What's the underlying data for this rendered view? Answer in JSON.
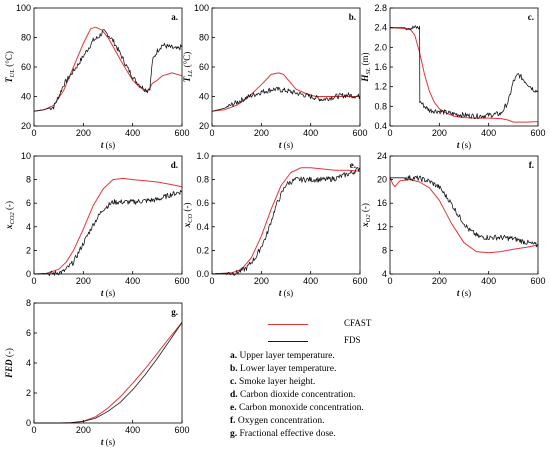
{
  "colors": {
    "cfast": "#e8323c",
    "fds": "#1a1a1a",
    "axis": "#000000"
  },
  "legend": {
    "cfast": "CFAST",
    "fds": "FDS"
  },
  "notes": [
    {
      "key": "a.",
      "text": "Upper layer temperature."
    },
    {
      "key": "b.",
      "text": "Lower layer temperature."
    },
    {
      "key": "c.",
      "text": "Smoke layer height."
    },
    {
      "key": "d.",
      "text": "Carbon dioxide concentration."
    },
    {
      "key": "e.",
      "text": "Carbon monoxide concentration."
    },
    {
      "key": "f.",
      "text": "Oxygen concentration."
    },
    {
      "key": "g.",
      "text": "Fractional effective dose."
    }
  ],
  "chart_data": [
    {
      "type": "line",
      "panel": "a.",
      "xlabel": "t (s)",
      "ylabel": "T_UL (°C)",
      "xlim": [
        0,
        600
      ],
      "ylim": [
        20,
        100
      ],
      "xticks": [
        0,
        200,
        400,
        600
      ],
      "yticks": [
        20,
        40,
        60,
        80,
        100
      ],
      "series": [
        {
          "name": "CFAST",
          "x": [
            0,
            40,
            80,
            120,
            160,
            200,
            230,
            250,
            275,
            300,
            330,
            360,
            400,
            430,
            460,
            470,
            480,
            500,
            520,
            560,
            600
          ],
          "y": [
            30,
            31,
            34,
            44,
            60,
            76,
            86,
            87,
            85,
            80,
            71,
            62,
            51,
            46,
            44,
            46,
            49,
            51,
            54,
            56,
            54
          ]
        },
        {
          "name": "FDS",
          "x": [
            0,
            40,
            80,
            100,
            120,
            150,
            180,
            210,
            240,
            260,
            280,
            300,
            320,
            350,
            380,
            410,
            440,
            460,
            470,
            475,
            480,
            500,
            520,
            540,
            560,
            580,
            600
          ],
          "y": [
            30,
            31,
            33,
            40,
            48,
            55,
            62,
            70,
            78,
            80,
            84,
            82,
            78,
            69,
            59,
            51,
            46,
            44,
            46,
            55,
            64,
            71,
            75,
            74,
            73,
            72,
            74
          ],
          "noisy": true
        }
      ]
    },
    {
      "type": "line",
      "panel": "b.",
      "xlabel": "t (s)",
      "ylabel": "T_LL (°C)",
      "xlim": [
        0,
        600
      ],
      "ylim": [
        20,
        100
      ],
      "xticks": [
        0,
        200,
        400,
        600
      ],
      "yticks": [
        20,
        40,
        60,
        80,
        100
      ],
      "series": [
        {
          "name": "CFAST",
          "x": [
            0,
            50,
            100,
            150,
            200,
            240,
            270,
            290,
            310,
            340,
            380,
            420,
            460,
            500,
            550,
            600
          ],
          "y": [
            30,
            31,
            34,
            40,
            48,
            55,
            56,
            55,
            51,
            45,
            42,
            40,
            40,
            40,
            40,
            40
          ]
        },
        {
          "name": "FDS",
          "x": [
            0,
            50,
            100,
            150,
            200,
            250,
            300,
            350,
            400,
            450,
            500,
            550,
            600
          ],
          "y": [
            30,
            32,
            36,
            40,
            43,
            45,
            44,
            42,
            40,
            38,
            40,
            41,
            40
          ],
          "noisy": true
        }
      ]
    },
    {
      "type": "line",
      "panel": "c.",
      "xlabel": "t (s)",
      "ylabel": "H_SL (m)",
      "xlim": [
        0,
        600
      ],
      "ylim": [
        0.4,
        2.8
      ],
      "xticks": [
        0,
        200,
        400,
        600
      ],
      "yticks": [
        0.4,
        0.8,
        1.2,
        1.6,
        2.0,
        2.4,
        2.8
      ],
      "series": [
        {
          "name": "CFAST",
          "x": [
            0,
            80,
            100,
            120,
            140,
            160,
            180,
            200,
            230,
            260,
            300,
            350,
            400,
            450,
            480,
            500,
            550,
            600
          ],
          "y": [
            2.4,
            2.38,
            2.25,
            1.9,
            1.45,
            1.1,
            0.88,
            0.75,
            0.66,
            0.6,
            0.57,
            0.56,
            0.56,
            0.55,
            0.52,
            0.48,
            0.48,
            0.49
          ]
        },
        {
          "name": "FDS",
          "x": [
            0,
            120,
            121,
            140,
            160,
            200,
            250,
            300,
            350,
            400,
            450,
            480,
            500,
            520,
            540,
            560,
            580,
            600
          ],
          "y": [
            2.4,
            2.4,
            0.9,
            0.8,
            0.72,
            0.7,
            0.65,
            0.62,
            0.6,
            0.62,
            0.65,
            0.9,
            1.3,
            1.45,
            1.35,
            1.25,
            1.15,
            1.1
          ],
          "noisy": true
        }
      ]
    },
    {
      "type": "line",
      "panel": "d.",
      "xlabel": "t (s)",
      "ylabel": "x_CO2 (-)",
      "xlim": [
        0,
        600
      ],
      "ylim": [
        0,
        10
      ],
      "xticks": [
        0,
        200,
        400,
        600
      ],
      "yticks": [
        0,
        2,
        4,
        6,
        8,
        10
      ],
      "series": [
        {
          "name": "CFAST",
          "x": [
            0,
            50,
            100,
            130,
            160,
            200,
            240,
            280,
            320,
            360,
            400,
            450,
            500,
            550,
            600
          ],
          "y": [
            0,
            0.05,
            0.4,
            1.0,
            2.0,
            3.8,
            5.8,
            7.2,
            8.0,
            8.1,
            8.0,
            7.9,
            7.8,
            7.6,
            7.4
          ]
        },
        {
          "name": "FDS",
          "x": [
            0,
            80,
            120,
            160,
            200,
            240,
            280,
            320,
            360,
            400,
            450,
            500,
            550,
            600
          ],
          "y": [
            0,
            0.05,
            0.2,
            1.0,
            2.6,
            4.2,
            5.5,
            6.1,
            6.1,
            6.1,
            6.2,
            6.3,
            6.7,
            7.0
          ],
          "noisy": true
        }
      ]
    },
    {
      "type": "line",
      "panel": "e.",
      "xlabel": "t (s)",
      "ylabel": "x_CO (-)",
      "xlim": [
        0,
        600
      ],
      "ylim": [
        0,
        1
      ],
      "xticks": [
        0,
        200,
        400,
        600
      ],
      "yticks": [
        0,
        0.2,
        0.4,
        0.6,
        0.8,
        1.0
      ],
      "series": [
        {
          "name": "CFAST",
          "x": [
            0,
            80,
            120,
            160,
            200,
            240,
            280,
            320,
            360,
            400,
            450,
            500,
            550,
            600
          ],
          "y": [
            0,
            0.01,
            0.04,
            0.14,
            0.32,
            0.55,
            0.75,
            0.86,
            0.9,
            0.9,
            0.89,
            0.88,
            0.88,
            0.87
          ]
        },
        {
          "name": "FDS",
          "x": [
            0,
            100,
            140,
            180,
            220,
            260,
            300,
            340,
            380,
            420,
            460,
            500,
            540,
            570,
            600
          ],
          "y": [
            0,
            0.01,
            0.05,
            0.15,
            0.32,
            0.58,
            0.76,
            0.8,
            0.8,
            0.8,
            0.8,
            0.81,
            0.84,
            0.86,
            0.9
          ],
          "noisy": true
        }
      ]
    },
    {
      "type": "line",
      "panel": "f.",
      "xlabel": "t (s)",
      "ylabel": "x_O2 (-)",
      "xlim": [
        0,
        600
      ],
      "ylim": [
        4,
        24
      ],
      "xticks": [
        0,
        200,
        400,
        600
      ],
      "yticks": [
        4,
        8,
        12,
        16,
        20,
        24
      ],
      "series": [
        {
          "name": "CFAST",
          "x": [
            0,
            10,
            20,
            40,
            80,
            120,
            160,
            200,
            250,
            300,
            350,
            400,
            450,
            500,
            550,
            600
          ],
          "y": [
            20.5,
            19.3,
            18.8,
            19.8,
            20.0,
            19.6,
            18.6,
            16.5,
            12.5,
            9.3,
            7.8,
            7.6,
            7.8,
            8.2,
            8.5,
            8.9
          ]
        },
        {
          "name": "FDS",
          "x": [
            0,
            80,
            120,
            160,
            200,
            240,
            280,
            320,
            360,
            400,
            450,
            500,
            550,
            600
          ],
          "y": [
            20.3,
            20.3,
            20.2,
            19.7,
            18.7,
            16.5,
            13.8,
            11.5,
            10.3,
            10.2,
            10.2,
            10.0,
            9.4,
            8.8
          ],
          "noisy": true
        }
      ]
    },
    {
      "type": "line",
      "panel": "g.",
      "xlabel": "t (s)",
      "ylabel": "FED (-)",
      "xlim": [
        0,
        600
      ],
      "ylim": [
        0,
        8
      ],
      "xticks": [
        0,
        200,
        400,
        600
      ],
      "yticks": [
        0,
        2,
        4,
        6,
        8
      ],
      "series": [
        {
          "name": "CFAST",
          "x": [
            0,
            100,
            150,
            200,
            250,
            300,
            350,
            400,
            450,
            500,
            550,
            600
          ],
          "y": [
            0,
            0,
            0.02,
            0.12,
            0.42,
            1.0,
            1.75,
            2.65,
            3.6,
            4.65,
            5.7,
            6.7
          ]
        },
        {
          "name": "FDS",
          "x": [
            0,
            100,
            150,
            200,
            250,
            300,
            350,
            400,
            450,
            500,
            550,
            600
          ],
          "y": [
            0,
            0,
            0.02,
            0.1,
            0.33,
            0.78,
            1.38,
            2.22,
            3.2,
            4.3,
            5.5,
            6.7
          ]
        }
      ]
    }
  ]
}
